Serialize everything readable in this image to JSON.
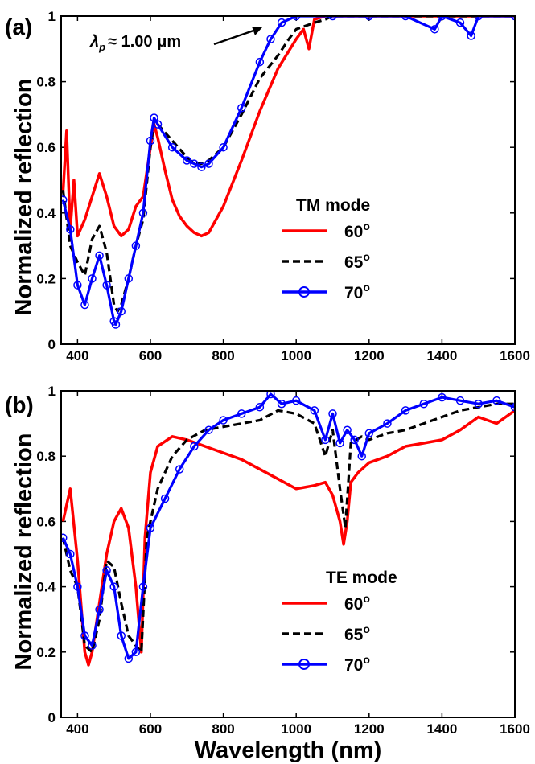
{
  "chart_data": [
    {
      "type": "line",
      "panel_label": "(a)",
      "xlabel": "",
      "ylabel": "Normalized reflection",
      "xlim": [
        355,
        1600
      ],
      "ylim": [
        0,
        1
      ],
      "xticks": [
        "400",
        "600",
        "800",
        "1000",
        "1200",
        "1400",
        "1600"
      ],
      "yticks": [
        "0",
        "0.2",
        "0.4",
        "0.6",
        "0.8",
        "1"
      ],
      "grid": false,
      "legend": {
        "title": "TM mode",
        "position": "center-right"
      },
      "annotation": {
        "symbol": "λ",
        "subscript": "p",
        "text": "≈ 1.00 μm",
        "points_to": [
          920,
          0.96
        ]
      },
      "series": [
        {
          "name": "60",
          "name_superscript": "o",
          "color": "#ff0000",
          "style": "solid",
          "x": [
            360,
            370,
            380,
            390,
            400,
            420,
            440,
            460,
            480,
            500,
            520,
            540,
            560,
            580,
            600,
            610,
            620,
            640,
            660,
            680,
            700,
            720,
            740,
            760,
            800,
            850,
            900,
            950,
            1000,
            1020,
            1035,
            1050,
            1080,
            1100,
            1200,
            1300,
            1400,
            1500,
            1600
          ],
          "y": [
            0.46,
            0.65,
            0.35,
            0.5,
            0.33,
            0.38,
            0.45,
            0.52,
            0.45,
            0.36,
            0.33,
            0.35,
            0.42,
            0.45,
            0.6,
            0.67,
            0.63,
            0.53,
            0.44,
            0.39,
            0.36,
            0.34,
            0.33,
            0.34,
            0.42,
            0.56,
            0.71,
            0.84,
            0.93,
            0.96,
            0.9,
            0.99,
            1.0,
            1.0,
            1.0,
            1.0,
            1.0,
            1.0,
            1.0
          ]
        },
        {
          "name": "65",
          "name_superscript": "o",
          "color": "#000000",
          "style": "dashed",
          "x": [
            360,
            380,
            400,
            420,
            440,
            460,
            480,
            500,
            510,
            520,
            540,
            560,
            580,
            600,
            610,
            620,
            660,
            700,
            720,
            740,
            760,
            800,
            850,
            900,
            950,
            980,
            1000,
            1050,
            1080,
            1100,
            1200,
            1300,
            1400,
            1500,
            1600
          ],
          "y": [
            0.47,
            0.3,
            0.25,
            0.21,
            0.32,
            0.36,
            0.28,
            0.12,
            0.1,
            0.12,
            0.2,
            0.3,
            0.38,
            0.6,
            0.68,
            0.67,
            0.62,
            0.57,
            0.55,
            0.55,
            0.56,
            0.6,
            0.7,
            0.81,
            0.88,
            0.93,
            0.96,
            0.98,
            0.99,
            1.0,
            1.0,
            1.0,
            1.0,
            1.0,
            1.0
          ]
        },
        {
          "name": "70",
          "name_superscript": "o",
          "color": "#0000ff",
          "style": "solid-circle",
          "x": [
            360,
            380,
            400,
            420,
            440,
            460,
            480,
            500,
            505,
            520,
            540,
            560,
            580,
            600,
            610,
            620,
            660,
            700,
            720,
            740,
            760,
            800,
            850,
            900,
            930,
            960,
            1000,
            1100,
            1200,
            1300,
            1380,
            1400,
            1450,
            1480,
            1500,
            1600
          ],
          "y": [
            0.44,
            0.35,
            0.18,
            0.12,
            0.2,
            0.27,
            0.18,
            0.07,
            0.06,
            0.1,
            0.2,
            0.3,
            0.4,
            0.62,
            0.69,
            0.67,
            0.6,
            0.56,
            0.55,
            0.54,
            0.55,
            0.6,
            0.72,
            0.86,
            0.93,
            0.98,
            1.0,
            1.0,
            1.0,
            1.0,
            0.96,
            1.0,
            0.98,
            0.94,
            1.0,
            1.0
          ]
        }
      ]
    },
    {
      "type": "line",
      "panel_label": "(b)",
      "xlabel": "Wavelength (nm)",
      "ylabel": "Normalized reflection",
      "xlim": [
        355,
        1600
      ],
      "ylim": [
        0,
        1
      ],
      "xticks": [
        "400",
        "600",
        "800",
        "1000",
        "1200",
        "1400",
        "1600"
      ],
      "yticks": [
        "0",
        "0.2",
        "0.4",
        "0.6",
        "0.8",
        "1"
      ],
      "grid": false,
      "legend": {
        "title": "TE mode",
        "position": "lower-right"
      },
      "series": [
        {
          "name": "60",
          "name_superscript": "o",
          "color": "#ff0000",
          "style": "solid",
          "x": [
            360,
            380,
            400,
            420,
            430,
            440,
            460,
            480,
            500,
            520,
            540,
            560,
            575,
            585,
            600,
            620,
            660,
            700,
            750,
            800,
            850,
            900,
            950,
            1000,
            1050,
            1080,
            1100,
            1120,
            1130,
            1140,
            1150,
            1170,
            1200,
            1250,
            1300,
            1350,
            1400,
            1450,
            1500,
            1550,
            1600
          ],
          "y": [
            0.6,
            0.7,
            0.48,
            0.2,
            0.16,
            0.2,
            0.35,
            0.5,
            0.6,
            0.64,
            0.58,
            0.4,
            0.2,
            0.55,
            0.75,
            0.83,
            0.86,
            0.85,
            0.83,
            0.81,
            0.79,
            0.76,
            0.73,
            0.7,
            0.71,
            0.72,
            0.68,
            0.6,
            0.53,
            0.6,
            0.72,
            0.75,
            0.78,
            0.8,
            0.83,
            0.84,
            0.85,
            0.88,
            0.92,
            0.9,
            0.94
          ]
        },
        {
          "name": "65",
          "name_superscript": "o",
          "color": "#000000",
          "style": "dashed",
          "x": [
            360,
            380,
            400,
            420,
            440,
            460,
            480,
            500,
            520,
            540,
            560,
            575,
            590,
            620,
            660,
            700,
            750,
            800,
            850,
            900,
            950,
            1000,
            1050,
            1080,
            1100,
            1120,
            1135,
            1150,
            1180,
            1200,
            1250,
            1300,
            1350,
            1400,
            1450,
            1500,
            1550,
            1600
          ],
          "y": [
            0.55,
            0.45,
            0.4,
            0.22,
            0.2,
            0.3,
            0.48,
            0.46,
            0.35,
            0.25,
            0.22,
            0.2,
            0.55,
            0.7,
            0.8,
            0.85,
            0.88,
            0.89,
            0.9,
            0.91,
            0.94,
            0.93,
            0.9,
            0.8,
            0.88,
            0.7,
            0.58,
            0.84,
            0.86,
            0.85,
            0.87,
            0.88,
            0.9,
            0.92,
            0.94,
            0.95,
            0.96,
            0.96
          ]
        },
        {
          "name": "70",
          "name_superscript": "o",
          "color": "#0000ff",
          "style": "solid-circle",
          "x": [
            360,
            380,
            400,
            420,
            440,
            460,
            480,
            500,
            520,
            540,
            560,
            580,
            600,
            640,
            680,
            720,
            760,
            800,
            850,
            900,
            930,
            960,
            1000,
            1050,
            1080,
            1100,
            1120,
            1140,
            1160,
            1180,
            1200,
            1250,
            1300,
            1350,
            1400,
            1450,
            1500,
            1550,
            1600
          ],
          "y": [
            0.55,
            0.5,
            0.4,
            0.25,
            0.22,
            0.33,
            0.45,
            0.4,
            0.25,
            0.18,
            0.2,
            0.4,
            0.58,
            0.67,
            0.76,
            0.83,
            0.88,
            0.91,
            0.93,
            0.95,
            0.99,
            0.96,
            0.97,
            0.94,
            0.85,
            0.93,
            0.84,
            0.88,
            0.85,
            0.8,
            0.87,
            0.9,
            0.94,
            0.96,
            0.98,
            0.97,
            0.96,
            0.97,
            0.95
          ]
        }
      ]
    }
  ]
}
